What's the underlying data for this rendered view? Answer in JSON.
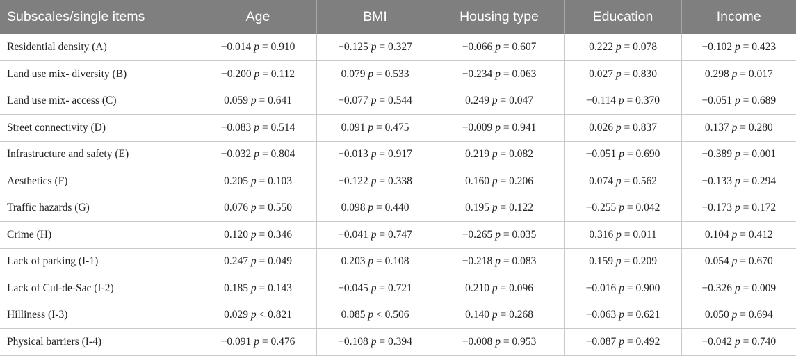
{
  "headers": [
    "Subscales/single items",
    "Age",
    "BMI",
    "Housing type",
    "Education",
    "Income"
  ],
  "rows": [
    {
      "label": "Residential density (A)",
      "cells": [
        {
          "r": "−0.014",
          "op": "=",
          "p": "0.910"
        },
        {
          "r": "−0.125",
          "op": "=",
          "p": "0.327"
        },
        {
          "r": "−0.066",
          "op": "=",
          "p": "0.607"
        },
        {
          "r": "0.222",
          "op": "=",
          "p": "0.078"
        },
        {
          "r": "−0.102",
          "op": "=",
          "p": "0.423"
        }
      ]
    },
    {
      "label": "Land use mix- diversity (B)",
      "cells": [
        {
          "r": "−0.200",
          "op": "=",
          "p": "0.112"
        },
        {
          "r": "0.079",
          "op": "=",
          "p": "0.533"
        },
        {
          "r": "−0.234",
          "op": "=",
          "p": "0.063"
        },
        {
          "r": "0.027",
          "op": "=",
          "p": "0.830"
        },
        {
          "r": "0.298",
          "op": "=",
          "p": "0.017"
        }
      ]
    },
    {
      "label": "Land use mix- access (C)",
      "cells": [
        {
          "r": "0.059",
          "op": "=",
          "p": "0.641"
        },
        {
          "r": "−0.077",
          "op": "=",
          "p": "0.544"
        },
        {
          "r": "0.249",
          "op": "=",
          "p": "0.047"
        },
        {
          "r": "−0.114",
          "op": "=",
          "p": "0.370"
        },
        {
          "r": "−0.051",
          "op": "=",
          "p": "0.689"
        }
      ]
    },
    {
      "label": "Street connectivity (D)",
      "cells": [
        {
          "r": "−0.083",
          "op": "=",
          "p": "0.514"
        },
        {
          "r": "0.091",
          "op": "=",
          "p": "0.475"
        },
        {
          "r": "−0.009",
          "op": "=",
          "p": "0.941"
        },
        {
          "r": "0.026",
          "op": "=",
          "p": "0.837"
        },
        {
          "r": "0.137",
          "op": "=",
          "p": "0.280"
        }
      ]
    },
    {
      "label": "Infrastructure and safety (E)",
      "cells": [
        {
          "r": "−0.032",
          "op": "=",
          "p": "0.804"
        },
        {
          "r": "−0.013",
          "op": "=",
          "p": "0.917"
        },
        {
          "r": "0.219",
          "op": "=",
          "p": "0.082"
        },
        {
          "r": "−0.051",
          "op": "=",
          "p": "0.690"
        },
        {
          "r": "−0.389",
          "op": "=",
          "p": "0.001"
        }
      ]
    },
    {
      "label": "Aesthetics (F)",
      "cells": [
        {
          "r": "0.205",
          "op": "=",
          "p": "0.103"
        },
        {
          "r": "−0.122",
          "op": "=",
          "p": "0.338"
        },
        {
          "r": "0.160",
          "op": "=",
          "p": "0.206"
        },
        {
          "r": "0.074",
          "op": "=",
          "p": "0.562"
        },
        {
          "r": "−0.133",
          "op": "=",
          "p": "0.294"
        }
      ]
    },
    {
      "label": "Traffic hazards (G)",
      "cells": [
        {
          "r": "0.076",
          "op": "=",
          "p": "0.550"
        },
        {
          "r": "0.098",
          "op": "=",
          "p": "0.440"
        },
        {
          "r": "0.195",
          "op": "=",
          "p": "0.122"
        },
        {
          "r": "−0.255",
          "op": "=",
          "p": "0.042"
        },
        {
          "r": "−0.173",
          "op": "=",
          "p": "0.172"
        }
      ]
    },
    {
      "label": "Crime (H)",
      "cells": [
        {
          "r": "0.120",
          "op": "=",
          "p": "0.346"
        },
        {
          "r": "−0.041",
          "op": "=",
          "p": "0.747"
        },
        {
          "r": "−0.265",
          "op": "=",
          "p": "0.035"
        },
        {
          "r": "0.316",
          "op": "=",
          "p": "0.011"
        },
        {
          "r": "0.104",
          "op": "=",
          "p": "0.412"
        }
      ]
    },
    {
      "label": "Lack of parking (I-1)",
      "cells": [
        {
          "r": "0.247",
          "op": "=",
          "p": "0.049"
        },
        {
          "r": "0.203",
          "op": "=",
          "p": "0.108"
        },
        {
          "r": "−0.218",
          "op": "=",
          "p": "0.083"
        },
        {
          "r": "0.159",
          "op": "=",
          "p": "0.209"
        },
        {
          "r": "0.054",
          "op": "=",
          "p": "0.670"
        }
      ]
    },
    {
      "label": "Lack of Cul-de-Sac (I-2)",
      "cells": [
        {
          "r": "0.185",
          "op": "=",
          "p": "0.143"
        },
        {
          "r": "−0.045",
          "op": "=",
          "p": "0.721"
        },
        {
          "r": "0.210",
          "op": "=",
          "p": "0.096"
        },
        {
          "r": "−0.016",
          "op": "=",
          "p": "0.900"
        },
        {
          "r": "−0.326",
          "op": "=",
          "p": "0.009"
        }
      ]
    },
    {
      "label": "Hilliness (I-3)",
      "cells": [
        {
          "r": "0.029",
          "op": "<",
          "p": "0.821"
        },
        {
          "r": "0.085",
          "op": "<",
          "p": "0.506"
        },
        {
          "r": "0.140",
          "op": "=",
          "p": "0.268"
        },
        {
          "r": "−0.063",
          "op": "=",
          "p": "0.621"
        },
        {
          "r": "0.050",
          "op": "=",
          "p": "0.694"
        }
      ]
    },
    {
      "label": "Physical barriers (I-4)",
      "cells": [
        {
          "r": "−0.091",
          "op": "=",
          "p": "0.476"
        },
        {
          "r": "−0.108",
          "op": "=",
          "p": "0.394"
        },
        {
          "r": "−0.008",
          "op": "=",
          "p": "0.953"
        },
        {
          "r": "−0.087",
          "op": "=",
          "p": "0.492"
        },
        {
          "r": "−0.042",
          "op": "=",
          "p": "0.740"
        }
      ]
    }
  ]
}
